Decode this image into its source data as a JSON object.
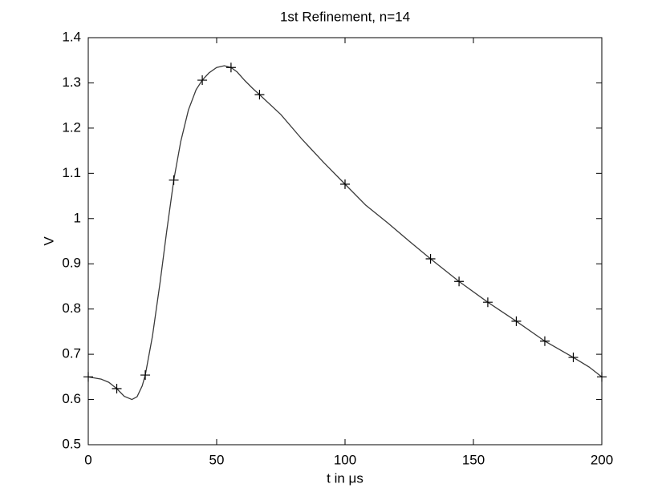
{
  "chart_data": {
    "type": "line",
    "title": "1st Refinement, n=14",
    "xlabel": "t in μs",
    "ylabel": "V",
    "xlim": [
      0,
      200
    ],
    "ylim": [
      0.5,
      1.4
    ],
    "xticks": [
      0,
      50,
      100,
      150,
      200
    ],
    "yticks": [
      0.5,
      0.6,
      0.7,
      0.8,
      0.9,
      1,
      1.1,
      1.2,
      1.3,
      1.4
    ],
    "grid": false,
    "series": [
      {
        "color": "#3a3a3a",
        "marker": "none",
        "x": [
          0,
          5,
          8,
          11.1,
          14,
          17,
          19,
          21,
          22.2,
          25,
          28,
          30.5,
          33.3,
          36,
          39,
          42,
          44.4,
          47,
          50,
          53,
          55.6,
          58,
          61,
          64,
          66.7,
          75,
          83.3,
          91.7,
          100,
          108,
          116.7,
          125,
          133.3,
          144.4,
          155.6,
          166.7,
          177.8,
          188.9,
          195,
          200
        ],
        "values": [
          0.65,
          0.645,
          0.638,
          0.624,
          0.607,
          0.6,
          0.606,
          0.63,
          0.654,
          0.74,
          0.86,
          0.97,
          1.085,
          1.17,
          1.24,
          1.285,
          1.306,
          1.322,
          1.334,
          1.338,
          1.334,
          1.324,
          1.305,
          1.288,
          1.274,
          1.23,
          1.175,
          1.124,
          1.076,
          1.03,
          0.99,
          0.95,
          0.911,
          0.861,
          0.815,
          0.773,
          0.729,
          0.693,
          0.672,
          0.65
        ]
      },
      {
        "color": "#000000",
        "marker": "+",
        "x": [
          0,
          11.1,
          22.2,
          33.3,
          44.4,
          55.6,
          66.7,
          100,
          133.3,
          144.4,
          155.6,
          166.7,
          177.8,
          188.9,
          200
        ],
        "values": [
          0.65,
          0.624,
          0.654,
          1.085,
          1.306,
          1.334,
          1.274,
          1.076,
          0.911,
          0.861,
          0.815,
          0.773,
          0.729,
          0.693,
          0.65
        ]
      }
    ]
  }
}
